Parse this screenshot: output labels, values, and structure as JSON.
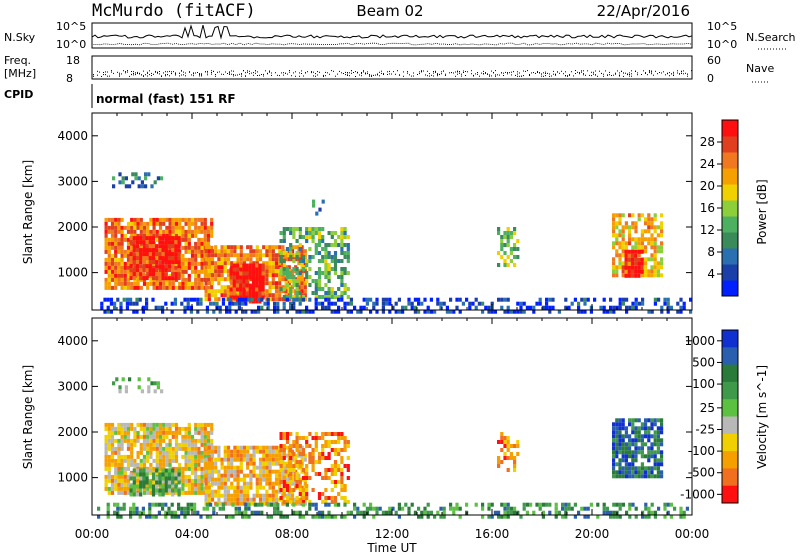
{
  "header": {
    "station": "McMurdo (fitACF)",
    "beam": "Beam 02",
    "date": "22/Apr/2016"
  },
  "aux": {
    "nsky_label": "N.Sky",
    "nsky_ticks": [
      "10^5",
      "10^0"
    ],
    "nsearch_label": "N.Search",
    "nsearch_ticks": [
      "10^5",
      "10^0"
    ],
    "freq_label": "Freq.",
    "freq_unit": "[MHz]",
    "freq_ticks": [
      "18",
      "8"
    ],
    "nave_label": "Nave",
    "nave_ticks": [
      "60",
      "0"
    ],
    "cpid_label": "CPID",
    "cpid_text": "normal (fast) 151 RF"
  },
  "chart_data": [
    {
      "type": "heatmap",
      "name": "power",
      "ylabel": "Slant Range [km]",
      "yticks": [
        "1000",
        "2000",
        "3000",
        "4000"
      ],
      "ylim": [
        180,
        4500
      ],
      "xlim": [
        0,
        24
      ],
      "colorbar": {
        "label": "Power [dB]",
        "ticks": [
          "4",
          "8",
          "12",
          "16",
          "20",
          "24",
          "28"
        ],
        "colors": [
          "#0020ff",
          "#1a3fa8",
          "#2a6fb0",
          "#3a8a5a",
          "#4cb060",
          "#8ccf3a",
          "#f0d000",
          "#f5a000",
          "#f07820",
          "#e04020",
          "#ff1010"
        ]
      },
      "blobs": [
        {
          "t0": 0.5,
          "t1": 4.8,
          "r0": 700,
          "r1": 2200,
          "level": 0.78,
          "density": 0.85
        },
        {
          "t0": 1.5,
          "t1": 3.5,
          "r0": 900,
          "r1": 1800,
          "level": 0.95,
          "density": 0.9
        },
        {
          "t0": 4.5,
          "t1": 8.5,
          "r0": 400,
          "r1": 1600,
          "level": 0.75,
          "density": 0.85
        },
        {
          "t0": 5.5,
          "t1": 6.8,
          "r0": 400,
          "r1": 1200,
          "level": 0.95,
          "density": 0.9
        },
        {
          "t0": 7.5,
          "t1": 10.3,
          "r0": 500,
          "r1": 2000,
          "level": 0.4,
          "density": 0.55
        },
        {
          "t0": 0.8,
          "t1": 2.8,
          "r0": 2900,
          "r1": 3200,
          "level": 0.25,
          "density": 0.35
        },
        {
          "t0": 8.8,
          "t1": 9.3,
          "r0": 2300,
          "r1": 2600,
          "level": 0.3,
          "density": 0.4
        },
        {
          "t0": 16.2,
          "t1": 17.0,
          "r0": 1200,
          "r1": 2000,
          "level": 0.45,
          "density": 0.55
        },
        {
          "t0": 20.8,
          "t1": 22.8,
          "r0": 900,
          "r1": 2300,
          "level": 0.65,
          "density": 0.7
        },
        {
          "t0": 21.3,
          "t1": 22.0,
          "r0": 900,
          "r1": 1500,
          "level": 0.95,
          "density": 0.8
        },
        {
          "t0": 0.2,
          "t1": 24.0,
          "r0": 180,
          "r1": 450,
          "level": 0.12,
          "density": 0.45
        }
      ]
    },
    {
      "type": "heatmap",
      "name": "velocity",
      "ylabel": "Slant Range [km]",
      "yticks": [
        "1000",
        "2000",
        "3000",
        "4000"
      ],
      "ylim": [
        180,
        4500
      ],
      "xlim": [
        0,
        24
      ],
      "xticks": [
        "00:00",
        "04:00",
        "08:00",
        "12:00",
        "16:00",
        "20:00",
        "00:00"
      ],
      "xlabel": "Time UT",
      "colorbar": {
        "label": "Velocity [m s^-1]",
        "ticks": [
          "1000",
          "500",
          "100",
          "25",
          "-25",
          "-100",
          "-500",
          "-1000"
        ],
        "colors": [
          "#1030d0",
          "#2a5fb0",
          "#2a7a3a",
          "#3e9a4a",
          "#5cc040",
          "#b8b8b8",
          "#f0d000",
          "#f5a000",
          "#f07020",
          "#ff1010"
        ]
      },
      "blobs": [
        {
          "t0": 0.5,
          "t1": 4.8,
          "r0": 700,
          "r1": 2200,
          "level": 0.35,
          "density": 0.85
        },
        {
          "t0": 1.5,
          "t1": 3.5,
          "r0": 600,
          "r1": 1200,
          "level": 0.62,
          "density": 0.7
        },
        {
          "t0": 4.5,
          "t1": 8.5,
          "r0": 450,
          "r1": 1700,
          "level": 0.32,
          "density": 0.8
        },
        {
          "t0": 7.5,
          "t1": 10.3,
          "r0": 500,
          "r1": 2000,
          "level": 0.2,
          "density": 0.55
        },
        {
          "t0": 0.8,
          "t1": 2.8,
          "r0": 2900,
          "r1": 3200,
          "level": 0.55,
          "density": 0.3
        },
        {
          "t0": 16.2,
          "t1": 17.0,
          "r0": 1200,
          "r1": 2000,
          "level": 0.25,
          "density": 0.5
        },
        {
          "t0": 20.8,
          "t1": 22.8,
          "r0": 1000,
          "r1": 2300,
          "level": 0.8,
          "density": 0.8
        },
        {
          "t0": 0.2,
          "t1": 24.0,
          "r0": 180,
          "r1": 450,
          "level": 0.68,
          "density": 0.45
        }
      ]
    }
  ]
}
